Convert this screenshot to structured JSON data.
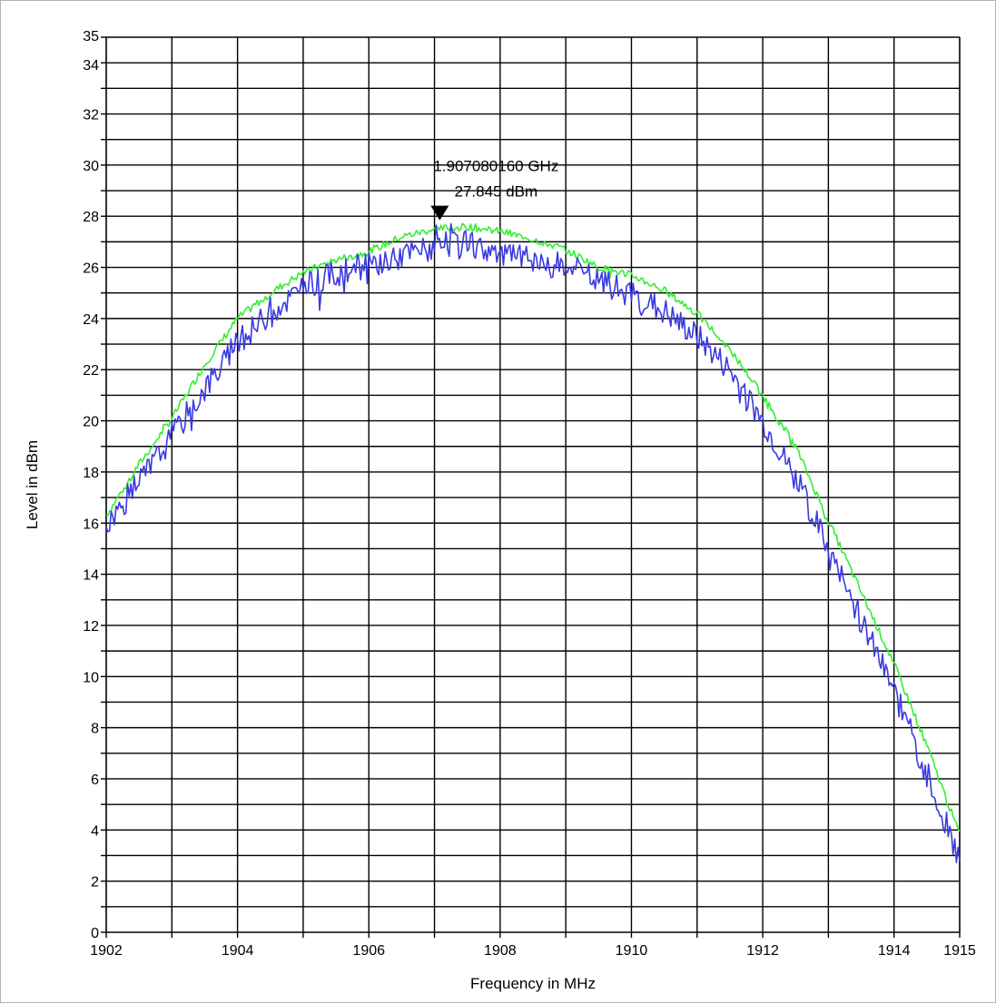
{
  "chart_data": {
    "type": "line",
    "title": "",
    "xlabel": "Frequency in MHz",
    "ylabel": "Level in dBm",
    "xlim": [
      1902,
      1915
    ],
    "ylim": [
      0,
      35
    ],
    "x_tick_labels": [
      1902,
      1904,
      1906,
      1908,
      1910,
      1912,
      1914,
      1915
    ],
    "y_tick_labels": [
      0,
      2,
      4,
      6,
      8,
      10,
      12,
      14,
      16,
      18,
      20,
      22,
      24,
      26,
      28,
      30,
      32,
      34,
      35
    ],
    "grid": true,
    "legend": "none",
    "colors": {
      "upper_trace": "#33ee33",
      "lower_trace": "#3a3ae0",
      "grid": "#000000"
    },
    "marker": {
      "x": 1907.08016,
      "y": 27.845,
      "freq_label": "1.907080160 GHz",
      "level_label": "27.845 dBm"
    },
    "series": [
      {
        "x": [
          1902,
          1902.5,
          1903,
          1903.5,
          1904,
          1904.5,
          1905,
          1905.5,
          1906,
          1906.5,
          1907,
          1907.5,
          1908,
          1908.5,
          1909,
          1909.5,
          1910,
          1910.5,
          1911,
          1911.5,
          1912,
          1912.5,
          1913,
          1913.5,
          1914,
          1914.5,
          1915
        ],
        "values": [
          16.3,
          18.3,
          20.1,
          22.2,
          24.0,
          25.0,
          25.8,
          26.3,
          26.6,
          27.2,
          27.5,
          27.6,
          27.4,
          27.1,
          26.7,
          26.0,
          25.7,
          25.1,
          24.2,
          22.8,
          21.0,
          19.0,
          16.1,
          13.3,
          10.5,
          7.3,
          3.8
        ]
      },
      {
        "x": [
          1902,
          1902.5,
          1903,
          1903.5,
          1904,
          1904.5,
          1905,
          1905.5,
          1906,
          1906.5,
          1907,
          1907.5,
          1908,
          1908.5,
          1909,
          1909.5,
          1910,
          1910.5,
          1911,
          1911.5,
          1912,
          1912.5,
          1913,
          1913.5,
          1914,
          1914.5,
          1915
        ],
        "values": [
          15.9,
          17.6,
          19.4,
          21.3,
          23.0,
          24.3,
          25.2,
          25.8,
          26.1,
          26.5,
          26.8,
          26.9,
          26.6,
          26.3,
          26.0,
          25.5,
          25.0,
          24.3,
          23.3,
          22.0,
          20.0,
          17.8,
          15.0,
          12.2,
          9.4,
          6.2,
          2.8
        ]
      }
    ]
  }
}
